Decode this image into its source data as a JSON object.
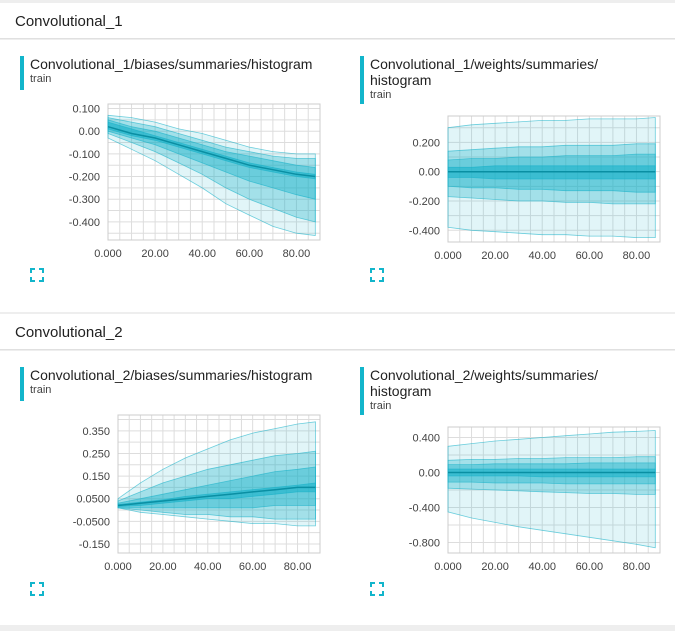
{
  "sections": [
    {
      "name": "Convolutional_1"
    },
    {
      "name": "Convolutional_2"
    }
  ],
  "colors": {
    "accent": "#12b5cb",
    "band": "#14b1c8",
    "grid": "#dddddd"
  },
  "cards": [
    {
      "title_lines": [
        "Convolutional_1/biases/summaries/histogram"
      ],
      "run": "train"
    },
    {
      "title_lines": [
        "Convolutional_1/weights/summaries/",
        "histogram"
      ],
      "run": "train"
    },
    {
      "title_lines": [
        "Convolutional_2/biases/summaries/histogram"
      ],
      "run": "train"
    },
    {
      "title_lines": [
        "Convolutional_2/weights/summaries/",
        "histogram"
      ],
      "run": "train"
    }
  ],
  "chart_data": [
    {
      "type": "area",
      "title": "Convolutional_1/biases/summaries/histogram",
      "run": "train",
      "xlim": [
        0,
        90
      ],
      "ylim": [
        -0.48,
        0.12
      ],
      "x_ticks": [
        "0.000",
        "20.00",
        "40.00",
        "60.00",
        "80.00"
      ],
      "y_ticks": [
        "0.100",
        "0.00",
        "-0.100",
        "-0.200",
        "-0.300",
        "-0.400"
      ],
      "x_tick_values": [
        0,
        20,
        40,
        60,
        80
      ],
      "y_tick_values": [
        0.1,
        0.0,
        -0.1,
        -0.2,
        -0.3,
        -0.4
      ],
      "x": [
        0,
        10,
        20,
        30,
        40,
        50,
        60,
        70,
        80,
        88
      ],
      "bands": [
        {
          "lower": [
            -0.03,
            -0.08,
            -0.13,
            -0.19,
            -0.25,
            -0.32,
            -0.37,
            -0.42,
            -0.45,
            -0.46
          ],
          "upper": [
            0.07,
            0.06,
            0.04,
            0.01,
            -0.01,
            -0.04,
            -0.07,
            -0.09,
            -0.1,
            -0.1
          ]
        },
        {
          "lower": [
            -0.01,
            -0.05,
            -0.09,
            -0.14,
            -0.19,
            -0.25,
            -0.3,
            -0.34,
            -0.38,
            -0.4
          ],
          "upper": [
            0.06,
            0.04,
            0.02,
            -0.01,
            -0.04,
            -0.07,
            -0.09,
            -0.11,
            -0.12,
            -0.12
          ]
        },
        {
          "lower": [
            0.0,
            -0.03,
            -0.06,
            -0.1,
            -0.14,
            -0.18,
            -0.22,
            -0.25,
            -0.28,
            -0.3
          ],
          "upper": [
            0.05,
            0.02,
            0.0,
            -0.03,
            -0.06,
            -0.09,
            -0.11,
            -0.13,
            -0.15,
            -0.16
          ]
        },
        {
          "lower": [
            0.01,
            -0.02,
            -0.04,
            -0.07,
            -0.1,
            -0.13,
            -0.16,
            -0.18,
            -0.2,
            -0.21
          ],
          "upper": [
            0.04,
            0.01,
            -0.02,
            -0.05,
            -0.08,
            -0.11,
            -0.14,
            -0.16,
            -0.18,
            -0.19
          ]
        }
      ],
      "median": [
        0.02,
        -0.01,
        -0.03,
        -0.06,
        -0.09,
        -0.12,
        -0.15,
        -0.17,
        -0.19,
        -0.2
      ]
    },
    {
      "type": "area",
      "title": "Convolutional_1/weights/summaries/histogram",
      "run": "train",
      "xlim": [
        0,
        90
      ],
      "ylim": [
        -0.48,
        0.38
      ],
      "x_ticks": [
        "0.000",
        "20.00",
        "40.00",
        "60.00",
        "80.00"
      ],
      "y_ticks": [
        "0.200",
        "0.00",
        "-0.200",
        "-0.400"
      ],
      "x_tick_values": [
        0,
        20,
        40,
        60,
        80
      ],
      "y_tick_values": [
        0.2,
        0.0,
        -0.2,
        -0.4
      ],
      "x": [
        0,
        10,
        20,
        30,
        40,
        50,
        60,
        70,
        80,
        88
      ],
      "bands": [
        {
          "lower": [
            -0.38,
            -0.4,
            -0.41,
            -0.42,
            -0.43,
            -0.43,
            -0.44,
            -0.44,
            -0.45,
            -0.45
          ],
          "upper": [
            0.3,
            0.32,
            0.33,
            0.34,
            0.35,
            0.35,
            0.36,
            0.36,
            0.36,
            0.37
          ]
        },
        {
          "lower": [
            -0.17,
            -0.18,
            -0.19,
            -0.2,
            -0.2,
            -0.21,
            -0.21,
            -0.22,
            -0.22,
            -0.22
          ],
          "upper": [
            0.14,
            0.15,
            0.16,
            0.17,
            0.17,
            0.18,
            0.18,
            0.18,
            0.19,
            0.19
          ]
        },
        {
          "lower": [
            -0.1,
            -0.11,
            -0.11,
            -0.12,
            -0.12,
            -0.13,
            -0.13,
            -0.13,
            -0.14,
            -0.14
          ],
          "upper": [
            0.08,
            0.09,
            0.09,
            0.1,
            0.1,
            0.11,
            0.11,
            0.11,
            0.12,
            0.12
          ]
        },
        {
          "lower": [
            -0.04,
            -0.04,
            -0.05,
            -0.05,
            -0.05,
            -0.05,
            -0.05,
            -0.05,
            -0.05,
            -0.05
          ],
          "upper": [
            0.03,
            0.03,
            0.04,
            0.04,
            0.04,
            0.04,
            0.04,
            0.04,
            0.04,
            0.04
          ]
        }
      ],
      "median": [
        0.0,
        0.0,
        0.0,
        0.0,
        0.0,
        0.0,
        0.0,
        0.0,
        0.0,
        0.0
      ]
    },
    {
      "type": "area",
      "title": "Convolutional_2/biases/summaries/histogram",
      "run": "train",
      "xlim": [
        0,
        90
      ],
      "ylim": [
        -0.19,
        0.42
      ],
      "x_ticks": [
        "0.000",
        "20.00",
        "40.00",
        "60.00",
        "80.00"
      ],
      "y_ticks": [
        "0.350",
        "0.250",
        "0.150",
        "0.0500",
        "-0.0500",
        "-0.150"
      ],
      "x_tick_values": [
        0,
        20,
        40,
        60,
        80
      ],
      "y_tick_values": [
        0.35,
        0.25,
        0.15,
        0.05,
        -0.05,
        -0.15
      ],
      "x": [
        0,
        10,
        20,
        30,
        40,
        50,
        60,
        70,
        80,
        88
      ],
      "bands": [
        {
          "lower": [
            0.01,
            -0.01,
            -0.02,
            -0.03,
            -0.04,
            -0.05,
            -0.06,
            -0.06,
            -0.07,
            -0.07
          ],
          "upper": [
            0.05,
            0.12,
            0.18,
            0.23,
            0.27,
            0.31,
            0.34,
            0.36,
            0.38,
            0.39
          ]
        },
        {
          "lower": [
            0.01,
            0.0,
            -0.01,
            -0.02,
            -0.02,
            -0.03,
            -0.03,
            -0.04,
            -0.04,
            -0.04
          ],
          "upper": [
            0.04,
            0.08,
            0.12,
            0.15,
            0.18,
            0.2,
            0.22,
            0.24,
            0.25,
            0.26
          ]
        },
        {
          "lower": [
            0.01,
            0.01,
            0.01,
            0.01,
            0.01,
            0.01,
            0.01,
            0.02,
            0.02,
            0.02
          ],
          "upper": [
            0.03,
            0.05,
            0.07,
            0.09,
            0.11,
            0.13,
            0.15,
            0.17,
            0.18,
            0.19
          ]
        },
        {
          "lower": [
            0.015,
            0.02,
            0.03,
            0.04,
            0.05,
            0.05,
            0.06,
            0.07,
            0.08,
            0.08
          ],
          "upper": [
            0.025,
            0.035,
            0.045,
            0.06,
            0.07,
            0.08,
            0.09,
            0.1,
            0.11,
            0.12
          ]
        }
      ],
      "median": [
        0.02,
        0.03,
        0.04,
        0.05,
        0.06,
        0.07,
        0.08,
        0.09,
        0.1,
        0.1
      ]
    },
    {
      "type": "area",
      "title": "Convolutional_2/weights/summaries/histogram",
      "run": "train",
      "xlim": [
        0,
        90
      ],
      "ylim": [
        -0.92,
        0.52
      ],
      "x_ticks": [
        "0.000",
        "20.00",
        "40.00",
        "60.00",
        "80.00"
      ],
      "y_ticks": [
        "0.400",
        "0.00",
        "-0.400",
        "-0.800"
      ],
      "x_tick_values": [
        0,
        20,
        40,
        60,
        80
      ],
      "y_tick_values": [
        0.4,
        0.0,
        -0.4,
        -0.8
      ],
      "x": [
        0,
        10,
        20,
        30,
        40,
        50,
        60,
        70,
        80,
        88
      ],
      "bands": [
        {
          "lower": [
            -0.45,
            -0.52,
            -0.57,
            -0.62,
            -0.66,
            -0.7,
            -0.74,
            -0.78,
            -0.82,
            -0.86
          ],
          "upper": [
            0.3,
            0.33,
            0.36,
            0.38,
            0.4,
            0.42,
            0.44,
            0.46,
            0.47,
            0.48
          ]
        },
        {
          "lower": [
            -0.18,
            -0.19,
            -0.2,
            -0.21,
            -0.22,
            -0.23,
            -0.24,
            -0.24,
            -0.25,
            -0.25
          ],
          "upper": [
            0.14,
            0.15,
            0.15,
            0.16,
            0.16,
            0.17,
            0.17,
            0.17,
            0.18,
            0.18
          ]
        },
        {
          "lower": [
            -0.11,
            -0.11,
            -0.12,
            -0.12,
            -0.12,
            -0.13,
            -0.13,
            -0.13,
            -0.13,
            -0.13
          ],
          "upper": [
            0.09,
            0.09,
            0.1,
            0.1,
            0.1,
            0.1,
            0.11,
            0.11,
            0.11,
            0.11
          ]
        },
        {
          "lower": [
            -0.04,
            -0.04,
            -0.04,
            -0.04,
            -0.05,
            -0.05,
            -0.05,
            -0.05,
            -0.05,
            -0.05
          ],
          "upper": [
            0.04,
            0.04,
            0.04,
            0.04,
            0.04,
            0.04,
            0.04,
            0.04,
            0.04,
            0.04
          ]
        }
      ],
      "median": [
        0.0,
        0.0,
        0.0,
        0.0,
        0.0,
        0.0,
        0.0,
        0.0,
        0.0,
        0.0
      ]
    }
  ]
}
